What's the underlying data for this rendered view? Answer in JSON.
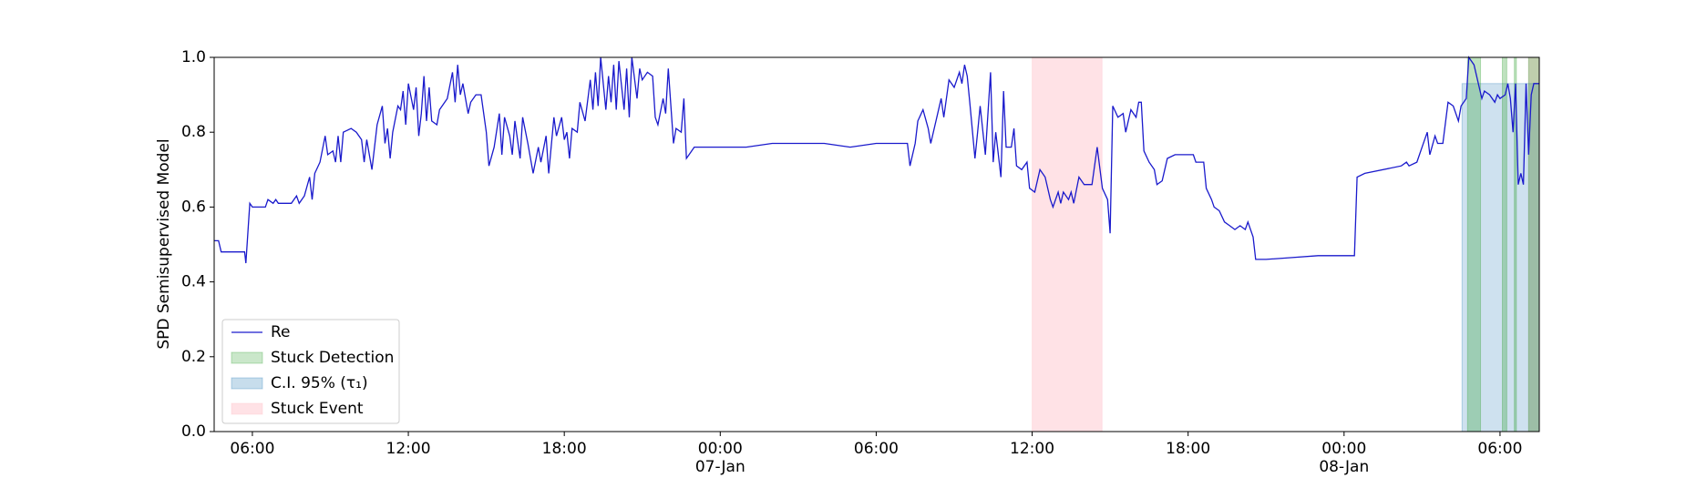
{
  "chart_data": {
    "type": "line",
    "ylabel": "SPD Semisupervised Model",
    "xlim": [
      4.53,
      55.51
    ],
    "ylim": [
      0,
      1
    ],
    "xticks": [
      {
        "value": 6,
        "label": "06:00"
      },
      {
        "value": 12,
        "label": "12:00"
      },
      {
        "value": 18,
        "label": "18:00"
      },
      {
        "value": 24,
        "label": "00:00\n07-Jan\n1900"
      },
      {
        "value": 30,
        "label": "06:00"
      },
      {
        "value": 36,
        "label": "12:00"
      },
      {
        "value": 42,
        "label": "18:00"
      },
      {
        "value": 48,
        "label": "00:00\n08-Jan"
      },
      {
        "value": 54,
        "label": "06:00"
      }
    ],
    "yticks": [
      {
        "value": 0,
        "label": "0.0"
      },
      0.2,
      0.4,
      0.6,
      0.8,
      {
        "value": 1,
        "label": "1.0"
      }
    ],
    "legend": "lower left",
    "x": [
      4.53,
      4.7,
      4.8,
      5.0,
      5.5,
      5.7,
      5.75,
      5.9,
      6.0,
      6.5,
      6.6,
      6.8,
      6.9,
      7.0,
      7.5,
      7.7,
      7.8,
      8.0,
      8.2,
      8.3,
      8.4,
      8.6,
      8.8,
      8.9,
      9.1,
      9.2,
      9.3,
      9.4,
      9.5,
      9.8,
      10.0,
      10.2,
      10.3,
      10.4,
      10.6,
      10.8,
      11.0,
      11.1,
      11.2,
      11.3,
      11.4,
      11.6,
      11.7,
      11.8,
      11.9,
      12.0,
      12.2,
      12.3,
      12.4,
      12.5,
      12.6,
      12.7,
      12.8,
      12.9,
      13.1,
      13.2,
      13.5,
      13.7,
      13.8,
      13.9,
      14.0,
      14.1,
      14.3,
      14.4,
      14.6,
      14.8,
      15.0,
      15.1,
      15.3,
      15.5,
      15.6,
      15.7,
      15.9,
      16.0,
      16.1,
      16.3,
      16.4,
      16.6,
      16.8,
      17.0,
      17.1,
      17.3,
      17.4,
      17.6,
      17.7,
      17.9,
      18.0,
      18.1,
      18.2,
      18.3,
      18.5,
      18.6,
      18.8,
      19.0,
      19.1,
      19.2,
      19.3,
      19.4,
      19.6,
      19.7,
      19.8,
      19.9,
      20.0,
      20.1,
      20.3,
      20.4,
      20.5,
      20.6,
      20.8,
      20.9,
      21.0,
      21.2,
      21.4,
      21.5,
      21.6,
      21.8,
      21.9,
      22.0,
      22.2,
      22.3,
      22.5,
      22.6,
      22.7,
      22.8,
      23.0,
      25.0,
      26.0,
      28.0,
      29.0,
      30.0,
      31.2,
      31.3,
      31.5,
      31.6,
      31.8,
      32.0,
      32.1,
      32.3,
      32.5,
      32.6,
      32.8,
      33.0,
      33.2,
      33.3,
      33.4,
      33.5,
      33.6,
      33.8,
      33.9,
      34.0,
      34.2,
      34.4,
      34.5,
      34.6,
      34.8,
      34.9,
      35.0,
      35.2,
      35.3,
      35.4,
      35.6,
      35.8,
      35.9,
      36.1,
      36.3,
      36.5,
      36.7,
      36.8,
      37.0,
      37.1,
      37.2,
      37.4,
      37.5,
      37.6,
      37.8,
      38.0,
      38.3,
      38.5,
      38.7,
      38.9,
      39.0,
      39.1,
      39.3,
      39.5,
      39.6,
      39.8,
      40.0,
      40.1,
      40.2,
      40.3,
      40.5,
      40.7,
      40.8,
      41.0,
      41.2,
      41.5,
      42.2,
      42.3,
      42.6,
      42.7,
      42.9,
      43.0,
      43.2,
      43.4,
      43.6,
      43.8,
      44.0,
      44.2,
      44.3,
      44.5,
      44.6,
      45.0,
      46.0,
      47.0,
      48.4,
      48.5,
      48.8,
      50.2,
      50.4,
      50.5,
      50.8,
      51.0,
      51.2,
      51.3,
      51.5,
      51.6,
      51.8,
      52.0,
      52.2,
      52.4,
      52.5,
      52.7,
      52.8,
      53.0,
      53.2,
      53.3,
      53.4,
      53.6,
      53.8,
      53.9,
      54.0,
      54.2,
      54.3,
      54.4,
      54.5,
      54.6,
      54.7,
      54.8,
      54.9,
      55.0,
      55.1,
      55.2,
      55.3,
      55.51
    ],
    "series": [
      {
        "name": "Re",
        "color": "#1a1acc",
        "values": [
          0.51,
          0.51,
          0.48,
          0.48,
          0.48,
          0.48,
          0.45,
          0.61,
          0.6,
          0.6,
          0.62,
          0.61,
          0.62,
          0.61,
          0.61,
          0.63,
          0.61,
          0.63,
          0.68,
          0.62,
          0.69,
          0.72,
          0.79,
          0.74,
          0.75,
          0.72,
          0.79,
          0.72,
          0.8,
          0.81,
          0.8,
          0.78,
          0.72,
          0.78,
          0.7,
          0.82,
          0.87,
          0.77,
          0.81,
          0.73,
          0.8,
          0.87,
          0.86,
          0.91,
          0.82,
          0.93,
          0.86,
          0.92,
          0.79,
          0.85,
          0.95,
          0.83,
          0.92,
          0.83,
          0.82,
          0.86,
          0.89,
          0.96,
          0.88,
          0.98,
          0.9,
          0.93,
          0.85,
          0.88,
          0.9,
          0.9,
          0.8,
          0.71,
          0.76,
          0.85,
          0.74,
          0.84,
          0.79,
          0.74,
          0.83,
          0.73,
          0.84,
          0.77,
          0.69,
          0.76,
          0.72,
          0.79,
          0.69,
          0.84,
          0.79,
          0.84,
          0.78,
          0.8,
          0.73,
          0.81,
          0.8,
          0.88,
          0.83,
          0.94,
          0.86,
          0.96,
          0.87,
          1.0,
          0.86,
          0.95,
          0.88,
          0.98,
          0.86,
          0.99,
          0.86,
          0.97,
          0.84,
          1.0,
          0.89,
          0.97,
          0.94,
          0.96,
          0.95,
          0.84,
          0.82,
          0.89,
          0.85,
          0.97,
          0.77,
          0.81,
          0.8,
          0.89,
          0.73,
          0.74,
          0.76,
          0.76,
          0.77,
          0.77,
          0.76,
          0.77,
          0.77,
          0.71,
          0.77,
          0.83,
          0.86,
          0.81,
          0.77,
          0.83,
          0.89,
          0.84,
          0.94,
          0.92,
          0.96,
          0.93,
          0.98,
          0.95,
          0.88,
          0.73,
          0.8,
          0.87,
          0.74,
          0.96,
          0.72,
          0.8,
          0.68,
          0.91,
          0.76,
          0.76,
          0.81,
          0.71,
          0.7,
          0.72,
          0.65,
          0.64,
          0.7,
          0.68,
          0.62,
          0.6,
          0.64,
          0.61,
          0.64,
          0.62,
          0.64,
          0.61,
          0.68,
          0.66,
          0.66,
          0.76,
          0.65,
          0.62,
          0.53,
          0.87,
          0.84,
          0.85,
          0.8,
          0.86,
          0.84,
          0.88,
          0.88,
          0.75,
          0.72,
          0.7,
          0.66,
          0.67,
          0.73,
          0.74,
          0.74,
          0.72,
          0.72,
          0.65,
          0.62,
          0.6,
          0.59,
          0.56,
          0.55,
          0.54,
          0.55,
          0.54,
          0.56,
          0.52,
          0.46,
          0.46,
          0.465,
          0.47,
          0.47,
          0.68,
          0.69,
          0.71,
          0.72,
          0.71,
          0.72,
          0.76,
          0.8,
          0.74,
          0.79,
          0.77,
          0.77,
          0.88,
          0.87,
          0.83,
          0.87,
          0.89,
          1.0,
          0.98,
          0.92,
          0.89,
          0.91,
          0.9,
          0.88,
          0.9,
          0.89,
          0.9,
          0.93,
          0.89,
          0.8,
          0.93,
          0.66,
          0.69,
          0.66,
          0.93,
          0.74,
          0.9,
          0.93,
          0.93
        ]
      }
    ],
    "spans": [
      {
        "name": "Stuck Detection",
        "color": "#2ca02c",
        "ymax": 1,
        "ranges": [
          [
            52.75,
            53.25
          ],
          [
            54.09,
            54.26
          ],
          [
            54.55,
            54.63
          ],
          [
            55.1,
            55.51
          ]
        ]
      },
      {
        "name": "C.I. 95% (τ₁)",
        "color": "#1f77b4",
        "ymax": 0.93,
        "ranges": [
          [
            52.54,
            55.51
          ]
        ]
      },
      {
        "name": "Stuck Event",
        "color": "#ffb6c1",
        "ymax": 1,
        "ranges": [
          [
            36.0,
            38.69
          ],
          [
            55.1,
            55.51
          ]
        ]
      }
    ]
  }
}
